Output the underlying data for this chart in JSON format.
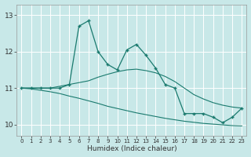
{
  "xlabel": "Humidex (Indice chaleur)",
  "x": [
    0,
    1,
    2,
    3,
    4,
    5,
    6,
    7,
    8,
    9,
    10,
    11,
    12,
    13,
    14,
    15,
    16,
    17,
    18,
    19,
    20,
    21,
    22,
    23
  ],
  "y_main": [
    11.0,
    11.0,
    11.0,
    11.0,
    11.0,
    11.1,
    12.7,
    12.85,
    12.0,
    11.65,
    11.5,
    12.05,
    12.2,
    11.9,
    11.55,
    11.1,
    11.0,
    10.3,
    10.3,
    10.3,
    10.2,
    10.05,
    10.2,
    10.45
  ],
  "y_line1": [
    11.0,
    11.0,
    11.0,
    11.0,
    11.05,
    11.1,
    11.15,
    11.2,
    11.3,
    11.38,
    11.45,
    11.5,
    11.52,
    11.48,
    11.42,
    11.32,
    11.18,
    11.0,
    10.82,
    10.7,
    10.6,
    10.53,
    10.48,
    10.45
  ],
  "y_line2": [
    11.0,
    10.98,
    10.94,
    10.9,
    10.85,
    10.78,
    10.72,
    10.65,
    10.58,
    10.5,
    10.44,
    10.38,
    10.32,
    10.27,
    10.22,
    10.17,
    10.13,
    10.09,
    10.06,
    10.03,
    10.01,
    9.99,
    9.97,
    9.96
  ],
  "ylim": [
    9.7,
    13.3
  ],
  "yticks": [
    10,
    11,
    12,
    13
  ],
  "xlim": [
    -0.5,
    23.5
  ],
  "line_color": "#1a7a6e",
  "bg_color": "#c8e8e8",
  "grid_color": "#ffffff",
  "label_color": "#333333"
}
